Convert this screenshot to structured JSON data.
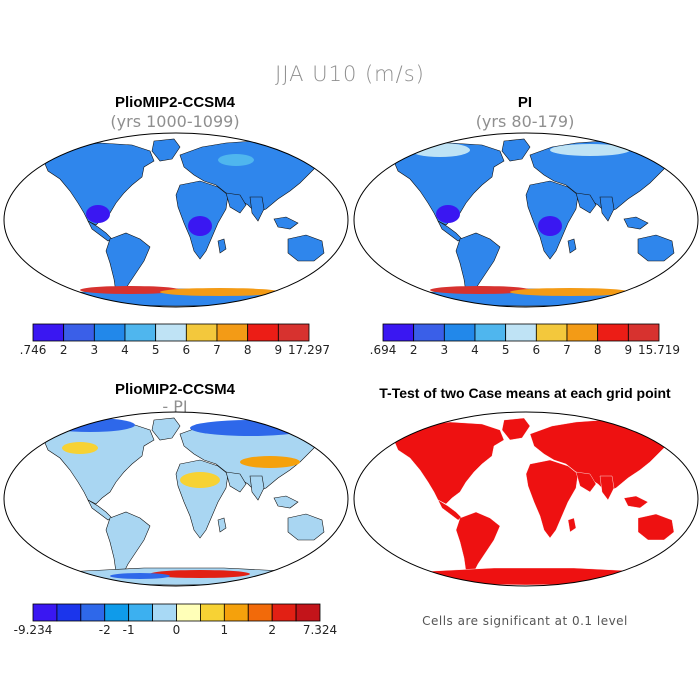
{
  "title": "JJA U10 (m/s)",
  "panels": [
    {
      "title": "PlioMIP2-CCSM4",
      "subtitle": "(yrs 1000-1099)"
    },
    {
      "title": "PI",
      "subtitle": "(yrs 80-179)"
    },
    {
      "title": "PlioMIP2-CCSM4",
      "subtitle": "- PI"
    },
    {
      "title": "T-Test of two Case means at each grid point",
      "subtitle": ""
    }
  ],
  "colorbars": [
    {
      "colors": [
        "#3a17f2",
        "#3a5fe8",
        "#2288ea",
        "#4fb6ee",
        "#bfe3f5",
        "#f3c83c",
        "#f39b16",
        "#ec1d16",
        "#d7322f"
      ],
      "labels": [
        ".746",
        "2",
        "3",
        "4",
        "5",
        "6",
        "7",
        "8",
        "9",
        "17.297"
      ]
    },
    {
      "colors": [
        "#3a17f2",
        "#3a5fe8",
        "#2288ea",
        "#4fb6ee",
        "#bfe3f5",
        "#f3c83c",
        "#f39b16",
        "#ec1d16",
        "#d7322f"
      ],
      "labels": [
        ".694",
        "2",
        "3",
        "4",
        "5",
        "6",
        "7",
        "8",
        "9",
        "15.719"
      ]
    },
    {
      "colors": [
        "#3a17f2",
        "#1b35ec",
        "#2e68ea",
        "#0f9bea",
        "#3cb0f0",
        "#a8d9f5",
        "#ffffb8",
        "#f7d234",
        "#f5a10c",
        "#f26a0a",
        "#e22014",
        "#c3141a"
      ],
      "labels": [
        "-9.234",
        "-2",
        "-1",
        "0",
        "1",
        "2",
        "7.324"
      ]
    }
  ],
  "note": "Cells are significant at 0.1 level",
  "colors": {
    "land_absolute": "#2f86ec",
    "land_difference": "#a9d6f2",
    "significant": "#ee1111"
  }
}
